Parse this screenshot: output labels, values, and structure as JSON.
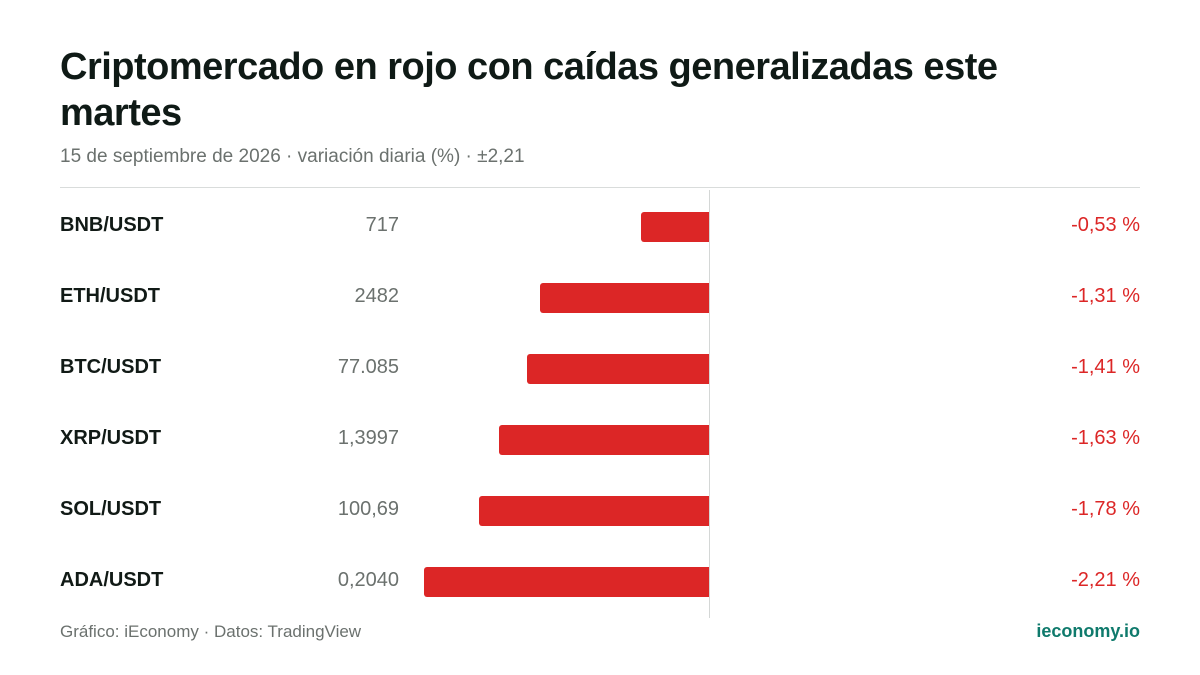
{
  "header": {
    "title": "Criptomercado en rojo con caídas generalizadas este martes",
    "subtitle": "15 de septiembre de 2026 · variación diaria (%) · ±2,21"
  },
  "footer": {
    "source": "Gráfico: iEconomy · Datos: TradingView",
    "brand": "ieconomy.io"
  },
  "colors": {
    "negative": "#dc2626",
    "brand": "#0f7a6c"
  },
  "chart_data": {
    "type": "bar",
    "orientation": "horizontal",
    "categories": [
      "BNB/USDT",
      "ETH/USDT",
      "BTC/USDT",
      "XRP/USDT",
      "SOL/USDT",
      "ADA/USDT"
    ],
    "prices": [
      "717",
      "2482",
      "77.085",
      "1,3997",
      "100,69",
      "0,2040"
    ],
    "values": [
      -0.53,
      -1.31,
      -1.41,
      -1.63,
      -1.78,
      -2.21
    ],
    "value_labels": [
      "-0,53 %",
      "-1,31 %",
      "-1,41 %",
      "-1,63 %",
      "-1,78 %",
      "-2,21 %"
    ],
    "xlim": [
      -2.21,
      2.21
    ],
    "grid": false
  }
}
